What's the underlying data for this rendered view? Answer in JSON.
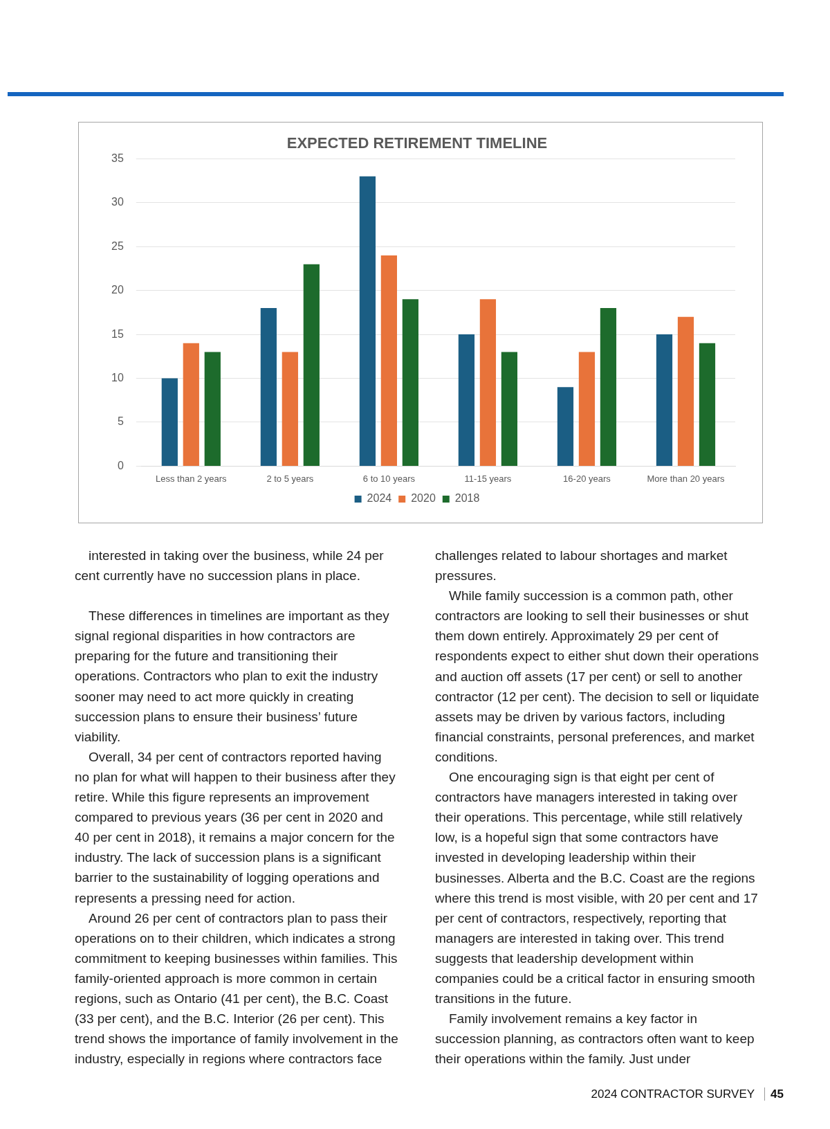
{
  "chart_data": {
    "type": "bar",
    "title": "EXPECTED RETIREMENT TIMELINE",
    "categories": [
      "Less than 2 years",
      "2 to 5 years",
      "6 to 10 years",
      "11-15 years",
      "16-20 years",
      "More than 20 years"
    ],
    "series": [
      {
        "name": "2024",
        "color": "#1b5e84",
        "values": [
          10,
          18,
          33,
          15,
          9,
          15
        ]
      },
      {
        "name": "2020",
        "color": "#e8733a",
        "values": [
          14,
          13,
          24,
          19,
          13,
          17
        ]
      },
      {
        "name": "2018",
        "color": "#1d6b2c",
        "values": [
          13,
          23,
          19,
          13,
          18,
          14
        ]
      }
    ],
    "ylim": [
      0,
      35
    ],
    "yticks": [
      0,
      5,
      10,
      15,
      20,
      25,
      30,
      35
    ],
    "grid": "y",
    "legend": "bottom",
    "annotations": [
      "interested in taking over the business, while 24 per cent currently have no succession plans in place.",
      "These differences in timelines are important as they signal regional disparities in how contractors are preparing for the future and transitioning their operations. Contractors who plan to exit the industry sooner may need to act more quickly in creating succession plans to ensure their business’ future viability.",
      "Overall, 34 per cent of contractors reported having no plan for what will happen to their business after they retire. While this figure represents an improvement compared to previous years (36 per cent in 2020 and 40 per cent in 2018), it remains a major concern for the industry. The lack of succession plans is a significant barrier to the sustainability of logging operations and represents a pressing need for action.",
      "Around 26 per cent of contractors plan to pass their operations on to their children, which indicates a strong commitment to keeping businesses within families. This family-oriented approach is more common in certain regions, such as Ontario (41 per cent), the B.C. Coast (33 per cent), and the B.C. Interior (26 per cent). This trend shows the importance of family involvement in the industry, especially in regions where contractors face challenges related to labour shortages and market pressures.",
      "While family succession is a common path, other contractors are looking to sell their businesses or shut them down entirely. Approximately 29 per cent of respondents expect to either shut down their operations and auction off assets (17 per cent) or sell to another contractor (12 per cent). The decision to sell or liquidate assets may be driven by various factors, including financial constraints, personal preferences, and market conditions.",
      "One encouraging sign is that eight per cent of contractors have managers interested in taking over their operations. This percentage, while still relatively low, is a hopeful sign that some contractors have invested in developing leadership within their businesses. Alberta and the B.C. Coast are the regions where this trend is most visible, with 20 per cent and 17 per cent of contractors, respectively, reporting that managers are interested in taking over. This trend suggests that leadership development within companies could be a critical factor in ensuring smooth transitions in the future.",
      "Family involvement remains a key factor in succession planning, as contractors often want to keep their operations within the family. Just under",
      "2024 CONTRACTOR SURVEY",
      "45"
    ]
  }
}
